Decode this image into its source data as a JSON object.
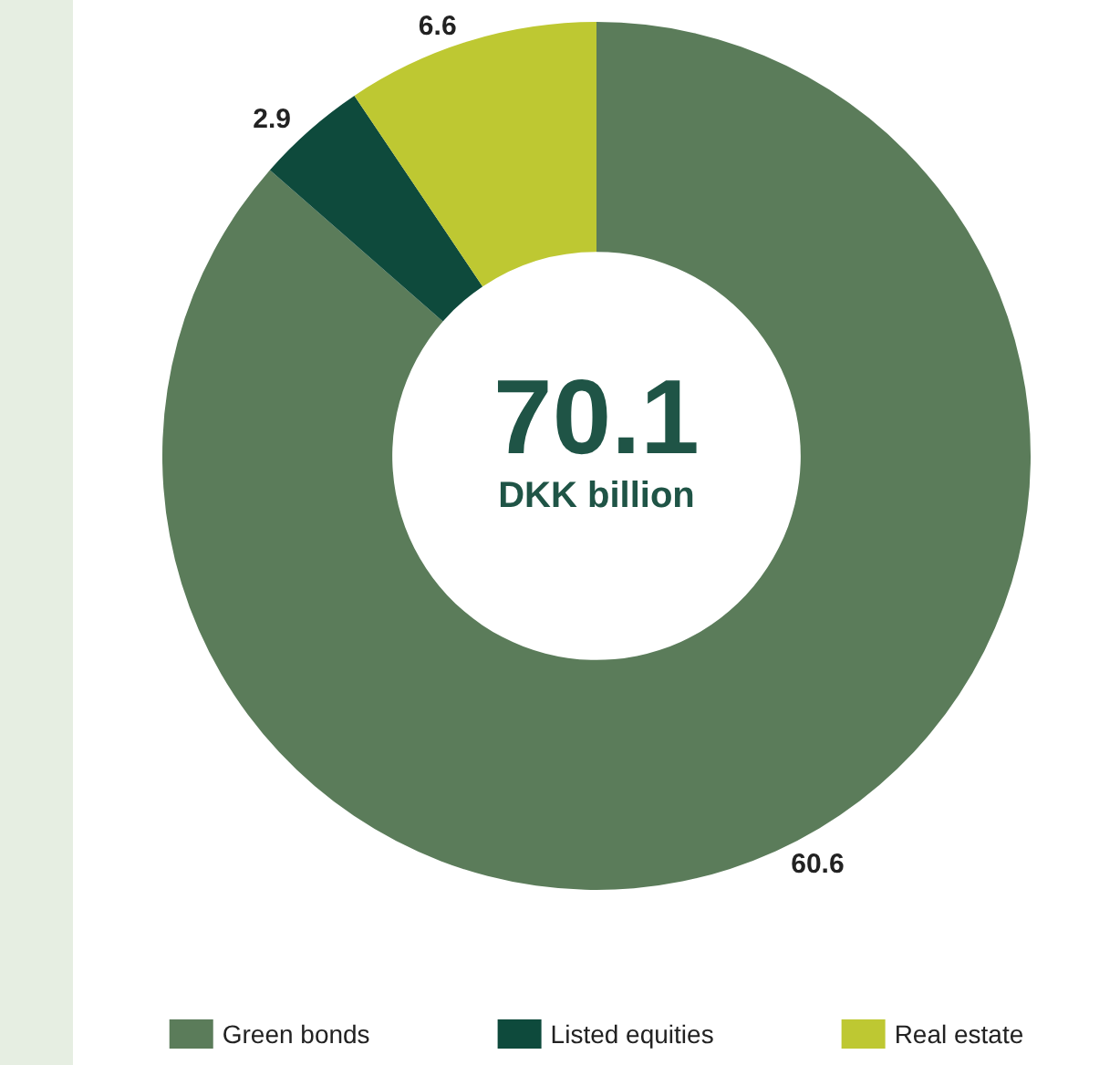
{
  "chart_data": {
    "type": "donut",
    "categories": [
      "Green bonds",
      "Listed equities",
      "Real estate"
    ],
    "values": [
      60.6,
      2.9,
      6.6
    ],
    "colors": [
      "#5b7c5a",
      "#0e4a3c",
      "#bec832"
    ],
    "data_labels": true,
    "legend": "bottom",
    "annotations": [
      "70.1",
      "DKK billion"
    ]
  }
}
